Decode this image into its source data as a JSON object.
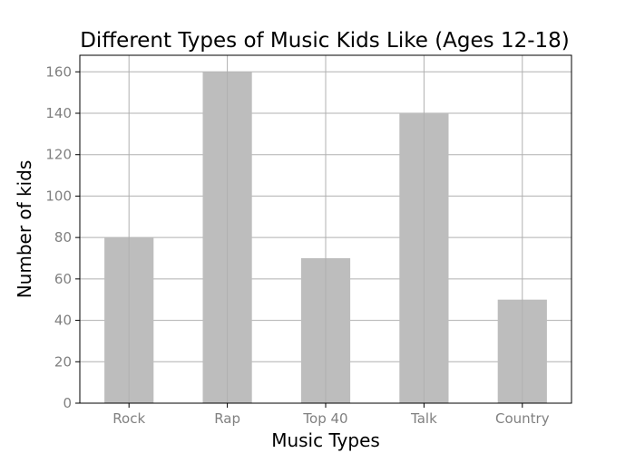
{
  "chart_data": {
    "type": "bar",
    "title": "Different Types of Music Kids Like (Ages 12-18)",
    "xlabel": "Music Types",
    "ylabel": "Number of kids",
    "categories": [
      "Rock",
      "Rap",
      "Top 40",
      "Talk",
      "Country"
    ],
    "values": [
      80,
      160,
      70,
      140,
      50
    ],
    "ylim": [
      0,
      168
    ],
    "yticks": [
      0,
      20,
      40,
      60,
      80,
      100,
      120,
      140,
      160
    ],
    "grid": true,
    "legend": "none",
    "bar_color": "#bdbdbd"
  }
}
